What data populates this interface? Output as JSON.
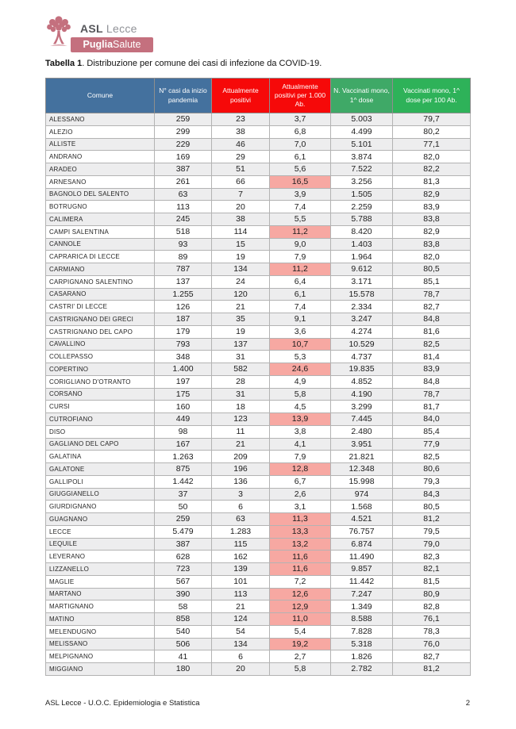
{
  "logo": {
    "org_bold": "ASL",
    "org_light": "Lecce",
    "banner_bold": "Puglia",
    "banner_light": "Salute",
    "rose": "#c4707e"
  },
  "title": {
    "bold": "Tabella 1",
    "rest": ". Distribuzione per comune dei casi di infezione da COVID-19."
  },
  "table": {
    "columns": [
      {
        "label": "Comune",
        "bg": "#44719e"
      },
      {
        "label": "N° casi da inizio pandemia",
        "bg": "#44719e"
      },
      {
        "label": "Attualmente positivi",
        "bg": "#f60909"
      },
      {
        "label": "Attualmente positivi per 1.000 Ab.",
        "bg": "#f60909"
      },
      {
        "label": "N. Vaccinati mono, 1^ dose",
        "bg": "#3fa967"
      },
      {
        "label": "Vaccinati mono, 1^ dose per 100 Ab.",
        "bg": "#2eb259"
      }
    ],
    "highlight_color": "#f7a8a2",
    "rows": [
      {
        "comune": "ALESSANO",
        "casi": "259",
        "positivi": "23",
        "per_1000": "3,7",
        "vaccinati": "5.003",
        "per_100": "79,7",
        "highlight": false
      },
      {
        "comune": "ALEZIO",
        "casi": "299",
        "positivi": "38",
        "per_1000": "6,8",
        "vaccinati": "4.499",
        "per_100": "80,2",
        "highlight": false
      },
      {
        "comune": "ALLISTE",
        "casi": "229",
        "positivi": "46",
        "per_1000": "7,0",
        "vaccinati": "5.101",
        "per_100": "77,1",
        "highlight": false
      },
      {
        "comune": "ANDRANO",
        "casi": "169",
        "positivi": "29",
        "per_1000": "6,1",
        "vaccinati": "3.874",
        "per_100": "82,0",
        "highlight": false
      },
      {
        "comune": "ARADEO",
        "casi": "387",
        "positivi": "51",
        "per_1000": "5,6",
        "vaccinati": "7.522",
        "per_100": "82,2",
        "highlight": false
      },
      {
        "comune": "ARNESANO",
        "casi": "261",
        "positivi": "66",
        "per_1000": "16,5",
        "vaccinati": "3.256",
        "per_100": "81,3",
        "highlight": true
      },
      {
        "comune": "BAGNOLO DEL SALENTO",
        "casi": "63",
        "positivi": "7",
        "per_1000": "3,9",
        "vaccinati": "1.505",
        "per_100": "82,9",
        "highlight": false
      },
      {
        "comune": "BOTRUGNO",
        "casi": "113",
        "positivi": "20",
        "per_1000": "7,4",
        "vaccinati": "2.259",
        "per_100": "83,9",
        "highlight": false
      },
      {
        "comune": "CALIMERA",
        "casi": "245",
        "positivi": "38",
        "per_1000": "5,5",
        "vaccinati": "5.788",
        "per_100": "83,8",
        "highlight": false
      },
      {
        "comune": "CAMPI SALENTINA",
        "casi": "518",
        "positivi": "114",
        "per_1000": "11,2",
        "vaccinati": "8.420",
        "per_100": "82,9",
        "highlight": true
      },
      {
        "comune": "CANNOLE",
        "casi": "93",
        "positivi": "15",
        "per_1000": "9,0",
        "vaccinati": "1.403",
        "per_100": "83,8",
        "highlight": false
      },
      {
        "comune": "CAPRARICA DI LECCE",
        "casi": "89",
        "positivi": "19",
        "per_1000": "7,9",
        "vaccinati": "1.964",
        "per_100": "82,0",
        "highlight": false
      },
      {
        "comune": "CARMIANO",
        "casi": "787",
        "positivi": "134",
        "per_1000": "11,2",
        "vaccinati": "9.612",
        "per_100": "80,5",
        "highlight": true
      },
      {
        "comune": "CARPIGNANO SALENTINO",
        "casi": "137",
        "positivi": "24",
        "per_1000": "6,4",
        "vaccinati": "3.171",
        "per_100": "85,1",
        "highlight": false
      },
      {
        "comune": "CASARANO",
        "casi": "1.255",
        "positivi": "120",
        "per_1000": "6,1",
        "vaccinati": "15.578",
        "per_100": "78,7",
        "highlight": false
      },
      {
        "comune": "CASTRI' DI LECCE",
        "casi": "126",
        "positivi": "21",
        "per_1000": "7,4",
        "vaccinati": "2.334",
        "per_100": "82,7",
        "highlight": false
      },
      {
        "comune": "CASTRIGNANO DEI GRECI",
        "casi": "187",
        "positivi": "35",
        "per_1000": "9,1",
        "vaccinati": "3.247",
        "per_100": "84,8",
        "highlight": false
      },
      {
        "comune": "CASTRIGNANO DEL CAPO",
        "casi": "179",
        "positivi": "19",
        "per_1000": "3,6",
        "vaccinati": "4.274",
        "per_100": "81,6",
        "highlight": false
      },
      {
        "comune": "CAVALLINO",
        "casi": "793",
        "positivi": "137",
        "per_1000": "10,7",
        "vaccinati": "10.529",
        "per_100": "82,5",
        "highlight": true
      },
      {
        "comune": "COLLEPASSO",
        "casi": "348",
        "positivi": "31",
        "per_1000": "5,3",
        "vaccinati": "4.737",
        "per_100": "81,4",
        "highlight": false
      },
      {
        "comune": "COPERTINO",
        "casi": "1.400",
        "positivi": "582",
        "per_1000": "24,6",
        "vaccinati": "19.835",
        "per_100": "83,9",
        "highlight": true
      },
      {
        "comune": "CORIGLIANO D'OTRANTO",
        "casi": "197",
        "positivi": "28",
        "per_1000": "4,9",
        "vaccinati": "4.852",
        "per_100": "84,8",
        "highlight": false
      },
      {
        "comune": "CORSANO",
        "casi": "175",
        "positivi": "31",
        "per_1000": "5,8",
        "vaccinati": "4.190",
        "per_100": "78,7",
        "highlight": false
      },
      {
        "comune": "CURSI",
        "casi": "160",
        "positivi": "18",
        "per_1000": "4,5",
        "vaccinati": "3.299",
        "per_100": "81,7",
        "highlight": false
      },
      {
        "comune": "CUTROFIANO",
        "casi": "449",
        "positivi": "123",
        "per_1000": "13,9",
        "vaccinati": "7.445",
        "per_100": "84,0",
        "highlight": true
      },
      {
        "comune": "DISO",
        "casi": "98",
        "positivi": "11",
        "per_1000": "3,8",
        "vaccinati": "2.480",
        "per_100": "85,4",
        "highlight": false
      },
      {
        "comune": "GAGLIANO DEL CAPO",
        "casi": "167",
        "positivi": "21",
        "per_1000": "4,1",
        "vaccinati": "3.951",
        "per_100": "77,9",
        "highlight": false
      },
      {
        "comune": "GALATINA",
        "casi": "1.263",
        "positivi": "209",
        "per_1000": "7,9",
        "vaccinati": "21.821",
        "per_100": "82,5",
        "highlight": false
      },
      {
        "comune": "GALATONE",
        "casi": "875",
        "positivi": "196",
        "per_1000": "12,8",
        "vaccinati": "12.348",
        "per_100": "80,6",
        "highlight": true
      },
      {
        "comune": "GALLIPOLI",
        "casi": "1.442",
        "positivi": "136",
        "per_1000": "6,7",
        "vaccinati": "15.998",
        "per_100": "79,3",
        "highlight": false
      },
      {
        "comune": "GIUGGIANELLO",
        "casi": "37",
        "positivi": "3",
        "per_1000": "2,6",
        "vaccinati": "974",
        "per_100": "84,3",
        "highlight": false
      },
      {
        "comune": "GIURDIGNANO",
        "casi": "50",
        "positivi": "6",
        "per_1000": "3,1",
        "vaccinati": "1.568",
        "per_100": "80,5",
        "highlight": false
      },
      {
        "comune": "GUAGNANO",
        "casi": "259",
        "positivi": "63",
        "per_1000": "11,3",
        "vaccinati": "4.521",
        "per_100": "81,2",
        "highlight": true
      },
      {
        "comune": "LECCE",
        "casi": "5.479",
        "positivi": "1.283",
        "per_1000": "13,3",
        "vaccinati": "76.757",
        "per_100": "79,5",
        "highlight": true
      },
      {
        "comune": "LEQUILE",
        "casi": "387",
        "positivi": "115",
        "per_1000": "13,2",
        "vaccinati": "6.874",
        "per_100": "79,0",
        "highlight": true
      },
      {
        "comune": "LEVERANO",
        "casi": "628",
        "positivi": "162",
        "per_1000": "11,6",
        "vaccinati": "11.490",
        "per_100": "82,3",
        "highlight": true
      },
      {
        "comune": "LIZZANELLO",
        "casi": "723",
        "positivi": "139",
        "per_1000": "11,6",
        "vaccinati": "9.857",
        "per_100": "82,1",
        "highlight": true
      },
      {
        "comune": "MAGLIE",
        "casi": "567",
        "positivi": "101",
        "per_1000": "7,2",
        "vaccinati": "11.442",
        "per_100": "81,5",
        "highlight": false
      },
      {
        "comune": "MARTANO",
        "casi": "390",
        "positivi": "113",
        "per_1000": "12,6",
        "vaccinati": "7.247",
        "per_100": "80,9",
        "highlight": true
      },
      {
        "comune": "MARTIGNANO",
        "casi": "58",
        "positivi": "21",
        "per_1000": "12,9",
        "vaccinati": "1.349",
        "per_100": "82,8",
        "highlight": true
      },
      {
        "comune": "MATINO",
        "casi": "858",
        "positivi": "124",
        "per_1000": "11,0",
        "vaccinati": "8.588",
        "per_100": "76,1",
        "highlight": true
      },
      {
        "comune": "MELENDUGNO",
        "casi": "540",
        "positivi": "54",
        "per_1000": "5,4",
        "vaccinati": "7.828",
        "per_100": "78,3",
        "highlight": false
      },
      {
        "comune": "MELISSANO",
        "casi": "506",
        "positivi": "134",
        "per_1000": "19,2",
        "vaccinati": "5.318",
        "per_100": "76,0",
        "highlight": true
      },
      {
        "comune": "MELPIGNANO",
        "casi": "41",
        "positivi": "6",
        "per_1000": "2,7",
        "vaccinati": "1.826",
        "per_100": "82,7",
        "highlight": false
      },
      {
        "comune": "MIGGIANO",
        "casi": "180",
        "positivi": "20",
        "per_1000": "5,8",
        "vaccinati": "2.782",
        "per_100": "81,2",
        "highlight": false
      }
    ]
  },
  "footer": {
    "left": "ASL Lecce - U.O.C. Epidemiologia e Statistica",
    "page": "2"
  }
}
